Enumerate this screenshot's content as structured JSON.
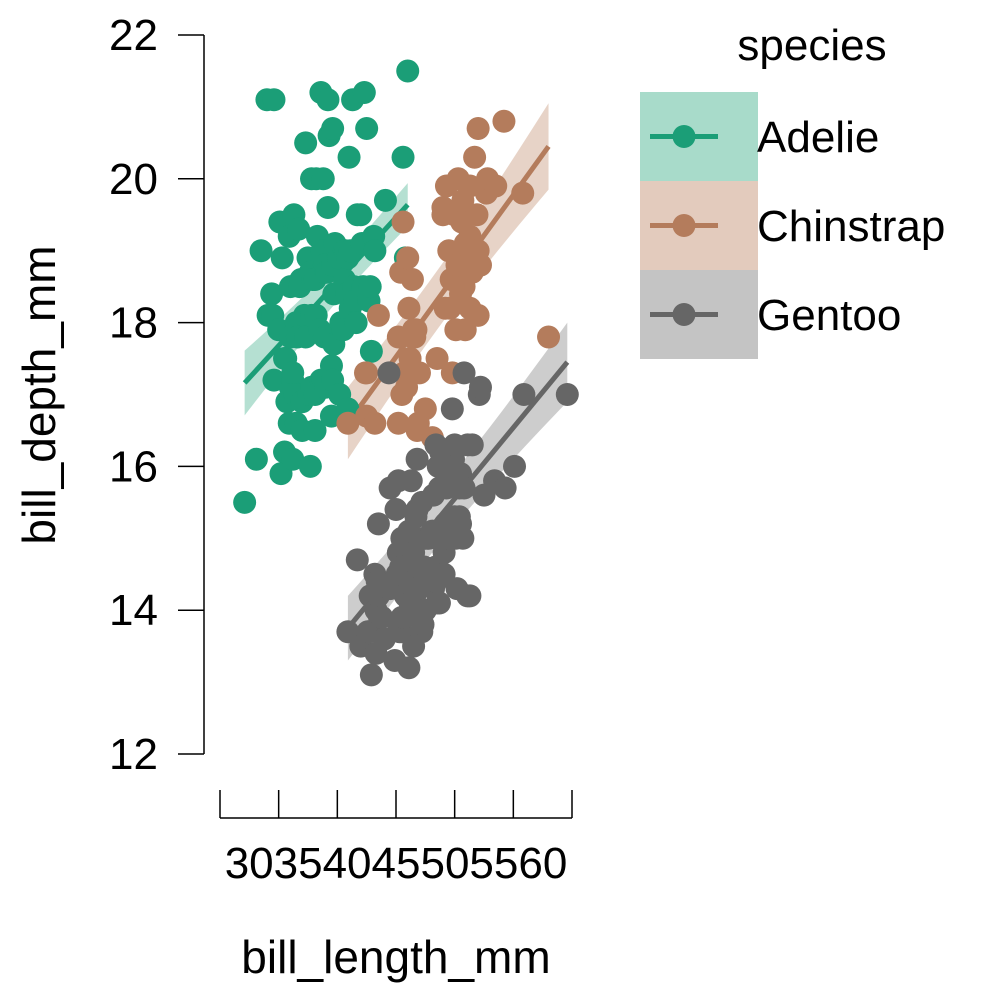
{
  "chart_data": {
    "type": "scatter",
    "xlabel": "bill_length_mm",
    "ylabel": "bill_depth_mm",
    "xlim": [
      30,
      60
    ],
    "ylim": [
      12,
      22
    ],
    "xticks": [
      30,
      35,
      40,
      45,
      50,
      55,
      60
    ],
    "xtick_labels": "30354045505560",
    "yticks": [
      12,
      14,
      16,
      18,
      20,
      22
    ],
    "legend": {
      "title": "species",
      "placement": "right"
    },
    "series": [
      {
        "name": "Adelie",
        "color": "#1b9e77",
        "band_color": "#a8dbca",
        "fit": {
          "x": [
            32.1,
            46.0
          ],
          "y": [
            17.16,
            19.64
          ],
          "band_halfwidth": [
            0.45,
            0.3
          ]
        },
        "points": [
          [
            32.1,
            15.5
          ],
          [
            33.1,
            16.1
          ],
          [
            33.5,
            19.0
          ],
          [
            34.0,
            21.1
          ],
          [
            34.1,
            18.1
          ],
          [
            34.4,
            18.4
          ],
          [
            34.5,
            18.1
          ],
          [
            34.6,
            17.2
          ],
          [
            34.6,
            21.1
          ],
          [
            35.0,
            17.9
          ],
          [
            35.1,
            19.4
          ],
          [
            35.2,
            15.9
          ],
          [
            35.3,
            18.9
          ],
          [
            35.5,
            16.2
          ],
          [
            35.5,
            17.5
          ],
          [
            35.6,
            17.5
          ],
          [
            35.7,
            16.9
          ],
          [
            35.9,
            16.6
          ],
          [
            35.9,
            19.2
          ],
          [
            36.0,
            17.1
          ],
          [
            36.0,
            17.8
          ],
          [
            36.0,
            18.5
          ],
          [
            36.2,
            16.1
          ],
          [
            36.2,
            17.2
          ],
          [
            36.2,
            17.3
          ],
          [
            36.3,
            19.5
          ],
          [
            36.4,
            17.0
          ],
          [
            36.5,
            16.6
          ],
          [
            36.5,
            18.0
          ],
          [
            36.6,
            17.8
          ],
          [
            36.7,
            19.3
          ],
          [
            36.8,
            18.5
          ],
          [
            36.9,
            18.6
          ],
          [
            37.0,
            16.5
          ],
          [
            37.0,
            16.9
          ],
          [
            37.2,
            18.1
          ],
          [
            37.3,
            17.8
          ],
          [
            37.3,
            20.5
          ],
          [
            37.5,
            18.9
          ],
          [
            37.6,
            17.0
          ],
          [
            37.7,
            16.0
          ],
          [
            37.7,
            18.7
          ],
          [
            37.8,
            17.1
          ],
          [
            37.8,
            18.1
          ],
          [
            37.8,
            20.0
          ],
          [
            37.9,
            18.6
          ],
          [
            38.1,
            16.5
          ],
          [
            38.1,
            17.0
          ],
          [
            38.1,
            18.6
          ],
          [
            38.2,
            18.1
          ],
          [
            38.2,
            20.0
          ],
          [
            38.3,
            19.2
          ],
          [
            38.5,
            17.9
          ],
          [
            38.6,
            17.2
          ],
          [
            38.6,
            21.2
          ],
          [
            38.7,
            19.0
          ],
          [
            38.8,
            17.2
          ],
          [
            38.8,
            20.0
          ],
          [
            38.9,
            17.8
          ],
          [
            38.9,
            18.8
          ],
          [
            39.0,
            17.1
          ],
          [
            39.0,
            18.7
          ],
          [
            39.1,
            18.7
          ],
          [
            39.2,
            19.6
          ],
          [
            39.2,
            21.1
          ],
          [
            39.3,
            20.6
          ],
          [
            39.5,
            16.7
          ],
          [
            39.5,
            17.4
          ],
          [
            39.6,
            17.2
          ],
          [
            39.6,
            18.8
          ],
          [
            39.6,
            20.7
          ],
          [
            39.7,
            17.7
          ],
          [
            39.7,
            18.4
          ],
          [
            39.8,
            19.1
          ],
          [
            40.1,
            18.9
          ],
          [
            40.2,
            17.0
          ],
          [
            40.3,
            18.0
          ],
          [
            40.5,
            17.9
          ],
          [
            40.6,
            18.6
          ],
          [
            40.6,
            19.0
          ],
          [
            40.7,
            19.0
          ],
          [
            40.8,
            18.4
          ],
          [
            40.9,
            16.8
          ],
          [
            40.9,
            18.9
          ],
          [
            41.0,
            20.3
          ],
          [
            41.1,
            18.2
          ],
          [
            41.1,
            19.0
          ],
          [
            41.3,
            21.1
          ],
          [
            41.4,
            18.5
          ],
          [
            41.5,
            18.3
          ],
          [
            41.6,
            18.0
          ],
          [
            41.7,
            19.5
          ],
          [
            42.0,
            19.5
          ],
          [
            42.1,
            19.1
          ],
          [
            42.2,
            18.5
          ],
          [
            42.3,
            21.2
          ],
          [
            42.5,
            20.7
          ],
          [
            42.7,
            18.3
          ],
          [
            42.8,
            18.5
          ],
          [
            42.9,
            17.6
          ],
          [
            43.1,
            19.2
          ],
          [
            43.2,
            19.0
          ],
          [
            44.1,
            19.7
          ],
          [
            45.6,
            20.3
          ],
          [
            45.8,
            18.9
          ],
          [
            46.0,
            21.5
          ]
        ]
      },
      {
        "name": "Chinstrap",
        "color": "#b47c5c",
        "band_color": "#e3cbbd",
        "fit": {
          "x": [
            40.9,
            58.0
          ],
          "y": [
            16.6,
            20.45
          ],
          "band_halfwidth": [
            0.5,
            0.6
          ]
        },
        "points": [
          [
            40.9,
            16.6
          ],
          [
            42.4,
            17.3
          ],
          [
            42.5,
            16.7
          ],
          [
            42.5,
            17.3
          ],
          [
            43.2,
            16.6
          ],
          [
            43.5,
            18.1
          ],
          [
            45.2,
            16.6
          ],
          [
            45.2,
            17.8
          ],
          [
            45.4,
            18.7
          ],
          [
            45.5,
            17.0
          ],
          [
            45.6,
            19.4
          ],
          [
            45.7,
            17.3
          ],
          [
            45.9,
            17.1
          ],
          [
            46.0,
            18.9
          ],
          [
            46.1,
            18.2
          ],
          [
            46.2,
            17.5
          ],
          [
            46.4,
            17.8
          ],
          [
            46.4,
            18.6
          ],
          [
            46.5,
            17.9
          ],
          [
            46.6,
            17.8
          ],
          [
            46.7,
            17.9
          ],
          [
            46.8,
            16.5
          ],
          [
            46.9,
            16.6
          ],
          [
            47.0,
            17.3
          ],
          [
            47.5,
            16.8
          ],
          [
            48.1,
            16.4
          ],
          [
            48.5,
            17.5
          ],
          [
            49.0,
            19.5
          ],
          [
            49.0,
            19.6
          ],
          [
            49.2,
            18.2
          ],
          [
            49.3,
            19.9
          ],
          [
            49.5,
            19.0
          ],
          [
            49.6,
            18.2
          ],
          [
            49.7,
            18.6
          ],
          [
            49.8,
            17.3
          ],
          [
            50.0,
            19.5
          ],
          [
            50.1,
            17.9
          ],
          [
            50.2,
            18.8
          ],
          [
            50.3,
            20.0
          ],
          [
            50.5,
            18.4
          ],
          [
            50.5,
            19.6
          ],
          [
            50.6,
            19.4
          ],
          [
            50.7,
            19.7
          ],
          [
            50.8,
            18.5
          ],
          [
            50.8,
            19.0
          ],
          [
            50.9,
            17.9
          ],
          [
            50.9,
            19.1
          ],
          [
            51.0,
            18.8
          ],
          [
            51.3,
            18.2
          ],
          [
            51.3,
            19.2
          ],
          [
            51.3,
            19.9
          ],
          [
            51.4,
            19.0
          ],
          [
            51.5,
            18.7
          ],
          [
            51.7,
            20.3
          ],
          [
            51.9,
            19.5
          ],
          [
            52.0,
            18.1
          ],
          [
            52.0,
            19.0
          ],
          [
            52.0,
            20.7
          ],
          [
            52.2,
            18.8
          ],
          [
            52.7,
            19.8
          ],
          [
            52.8,
            20.0
          ],
          [
            53.5,
            19.9
          ],
          [
            54.2,
            20.8
          ],
          [
            55.8,
            19.8
          ],
          [
            58.0,
            17.8
          ]
        ]
      },
      {
        "name": "Gentoo",
        "color": "#666666",
        "band_color": "#c4c4c4",
        "fit": {
          "x": [
            40.9,
            59.6
          ],
          "y": [
            13.75,
            17.45
          ],
          "band_halfwidth": [
            0.45,
            0.55
          ]
        },
        "points": [
          [
            40.9,
            13.7
          ],
          [
            41.7,
            14.7
          ],
          [
            42.0,
            13.5
          ],
          [
            42.6,
            13.7
          ],
          [
            42.7,
            13.7
          ],
          [
            42.8,
            14.2
          ],
          [
            42.9,
            13.1
          ],
          [
            43.2,
            14.5
          ],
          [
            43.3,
            13.4
          ],
          [
            43.3,
            14.0
          ],
          [
            43.4,
            14.4
          ],
          [
            43.5,
            14.2
          ],
          [
            43.5,
            15.2
          ],
          [
            43.6,
            13.9
          ],
          [
            43.8,
            13.9
          ],
          [
            44.0,
            13.6
          ],
          [
            44.4,
            17.3
          ],
          [
            44.5,
            14.3
          ],
          [
            44.5,
            15.7
          ],
          [
            44.9,
            13.3
          ],
          [
            45.0,
            15.4
          ],
          [
            45.1,
            14.4
          ],
          [
            45.1,
            14.5
          ],
          [
            45.2,
            13.8
          ],
          [
            45.2,
            14.8
          ],
          [
            45.2,
            15.8
          ],
          [
            45.3,
            13.7
          ],
          [
            45.3,
            13.8
          ],
          [
            45.4,
            14.6
          ],
          [
            45.5,
            13.7
          ],
          [
            45.5,
            13.9
          ],
          [
            45.5,
            14.5
          ],
          [
            45.5,
            15.0
          ],
          [
            45.7,
            13.9
          ],
          [
            45.8,
            14.2
          ],
          [
            45.8,
            14.6
          ],
          [
            46.1,
            13.2
          ],
          [
            46.1,
            15.1
          ],
          [
            46.2,
            14.1
          ],
          [
            46.2,
            14.4
          ],
          [
            46.2,
            14.5
          ],
          [
            46.2,
            14.9
          ],
          [
            46.3,
            15.8
          ],
          [
            46.4,
            14.5
          ],
          [
            46.4,
            15.0
          ],
          [
            46.5,
            13.5
          ],
          [
            46.5,
            14.4
          ],
          [
            46.5,
            14.8
          ],
          [
            46.6,
            14.2
          ],
          [
            46.7,
            15.3
          ],
          [
            46.8,
            14.3
          ],
          [
            46.8,
            15.4
          ],
          [
            46.8,
            16.1
          ],
          [
            46.9,
            14.6
          ],
          [
            47.2,
            13.7
          ],
          [
            47.2,
            15.5
          ],
          [
            47.3,
            13.8
          ],
          [
            47.4,
            14.6
          ],
          [
            47.4,
            15.0
          ],
          [
            47.5,
            14.0
          ],
          [
            47.5,
            15.0
          ],
          [
            47.6,
            14.5
          ],
          [
            47.7,
            15.0
          ],
          [
            47.8,
            15.0
          ],
          [
            48.1,
            15.1
          ],
          [
            48.2,
            14.3
          ],
          [
            48.2,
            15.6
          ],
          [
            48.4,
            14.4
          ],
          [
            48.4,
            14.6
          ],
          [
            48.4,
            16.3
          ],
          [
            48.5,
            14.1
          ],
          [
            48.5,
            15.0
          ],
          [
            48.6,
            16.0
          ],
          [
            48.7,
            14.1
          ],
          [
            48.7,
            15.1
          ],
          [
            48.7,
            15.7
          ],
          [
            48.8,
            16.2
          ],
          [
            49.0,
            16.1
          ],
          [
            49.1,
            14.5
          ],
          [
            49.1,
            14.8
          ],
          [
            49.1,
            15.0
          ],
          [
            49.2,
            15.2
          ],
          [
            49.3,
            15.7
          ],
          [
            49.4,
            15.8
          ],
          [
            49.5,
            16.1
          ],
          [
            49.5,
            16.2
          ],
          [
            49.6,
            15.0
          ],
          [
            49.6,
            16.0
          ],
          [
            49.8,
            15.9
          ],
          [
            49.8,
            16.8
          ],
          [
            49.9,
            16.1
          ],
          [
            50.0,
            15.2
          ],
          [
            50.0,
            15.3
          ],
          [
            50.0,
            15.9
          ],
          [
            50.0,
            16.3
          ],
          [
            50.1,
            15.0
          ],
          [
            50.2,
            14.3
          ],
          [
            50.4,
            15.3
          ],
          [
            50.4,
            15.7
          ],
          [
            50.5,
            15.2
          ],
          [
            50.5,
            15.9
          ],
          [
            50.7,
            15.0
          ],
          [
            50.8,
            15.7
          ],
          [
            50.8,
            17.3
          ],
          [
            51.1,
            14.2
          ],
          [
            51.1,
            16.3
          ],
          [
            51.3,
            14.2
          ],
          [
            51.5,
            16.3
          ],
          [
            52.1,
            17.0
          ],
          [
            52.2,
            17.1
          ],
          [
            52.5,
            15.6
          ],
          [
            53.4,
            15.8
          ],
          [
            54.3,
            15.7
          ],
          [
            55.1,
            16.0
          ],
          [
            55.9,
            17.0
          ],
          [
            59.6,
            17.0
          ]
        ]
      }
    ]
  }
}
